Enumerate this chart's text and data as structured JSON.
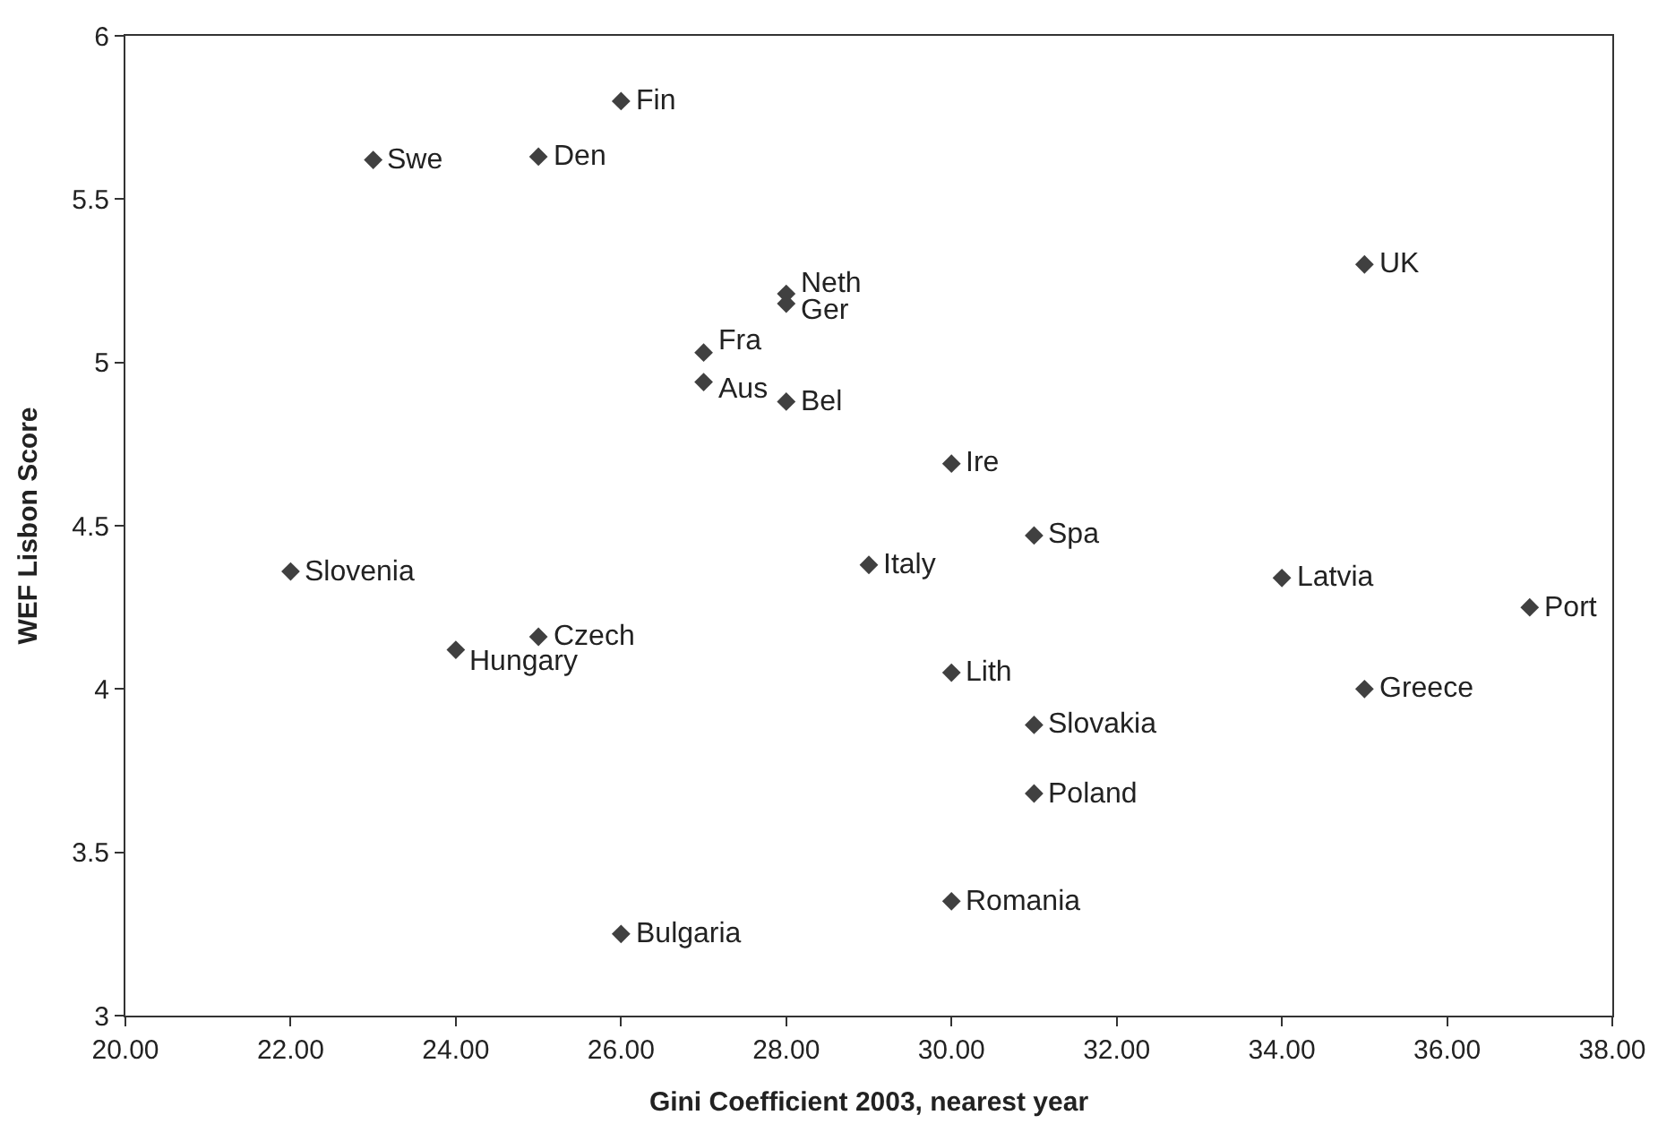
{
  "chart_data": {
    "type": "scatter",
    "xlabel": "Gini Coefficient 2003, nearest year",
    "ylabel": "WEF Lisbon Score",
    "x": [
      26,
      23,
      25,
      28,
      28,
      35,
      27,
      27,
      28,
      30,
      31,
      29,
      22,
      34,
      37,
      25,
      24,
      30,
      35,
      31,
      31,
      30,
      26
    ],
    "series": [
      {
        "color": "#404040",
        "values": [
          5.8,
          5.62,
          5.63,
          5.21,
          5.18,
          5.3,
          5.03,
          4.94,
          4.88,
          4.69,
          4.47,
          4.38,
          4.36,
          4.34,
          4.25,
          4.16,
          4.12,
          4.05,
          4.0,
          3.89,
          3.68,
          3.35,
          3.25
        ]
      }
    ],
    "annotations": [
      {
        "text": "Fin",
        "x": 26,
        "y": 5.8
      },
      {
        "text": "Swe",
        "x": 23,
        "y": 5.62
      },
      {
        "text": "Den",
        "x": 25,
        "y": 5.63
      },
      {
        "text": "Neth",
        "x": 28,
        "y": 5.21
      },
      {
        "text": "Ger",
        "x": 28,
        "y": 5.18
      },
      {
        "text": "UK",
        "x": 35,
        "y": 5.3
      },
      {
        "text": "Fra",
        "x": 27,
        "y": 5.03
      },
      {
        "text": "Aus",
        "x": 27,
        "y": 4.94
      },
      {
        "text": "Bel",
        "x": 28,
        "y": 4.88
      },
      {
        "text": "Ire",
        "x": 30,
        "y": 4.69
      },
      {
        "text": "Spa",
        "x": 31,
        "y": 4.47
      },
      {
        "text": "Italy",
        "x": 29,
        "y": 4.38
      },
      {
        "text": "Slovenia",
        "x": 22,
        "y": 4.36
      },
      {
        "text": "Latvia",
        "x": 34,
        "y": 4.34
      },
      {
        "text": "Port",
        "x": 37,
        "y": 4.25
      },
      {
        "text": "Czech",
        "x": 25,
        "y": 4.16
      },
      {
        "text": "Hungary",
        "x": 24,
        "y": 4.12
      },
      {
        "text": "Lith",
        "x": 30,
        "y": 4.05
      },
      {
        "text": "Greece",
        "x": 35,
        "y": 4.0
      },
      {
        "text": "Slovakia",
        "x": 31,
        "y": 3.89
      },
      {
        "text": "Poland",
        "x": 31,
        "y": 3.68
      },
      {
        "text": "Romania",
        "x": 30,
        "y": 3.35
      },
      {
        "text": "Bulgaria",
        "x": 26,
        "y": 3.25
      }
    ],
    "xlim": [
      20,
      38
    ],
    "xticks": [
      {
        "value": 20,
        "label": "20.00"
      },
      {
        "value": 22,
        "label": "22.00"
      },
      {
        "value": 24,
        "label": "24.00"
      },
      {
        "value": 26,
        "label": "26.00"
      },
      {
        "value": 28,
        "label": "28.00"
      },
      {
        "value": 30,
        "label": "30.00"
      },
      {
        "value": 32,
        "label": "32.00"
      },
      {
        "value": 34,
        "label": "34.00"
      },
      {
        "value": 36,
        "label": "36.00"
      },
      {
        "value": 38,
        "label": "38.00"
      }
    ],
    "ylim": [
      3,
      6
    ],
    "yticks": [
      3,
      3.5,
      4,
      4.5,
      5,
      5.5,
      6
    ],
    "marker": "diamond"
  }
}
